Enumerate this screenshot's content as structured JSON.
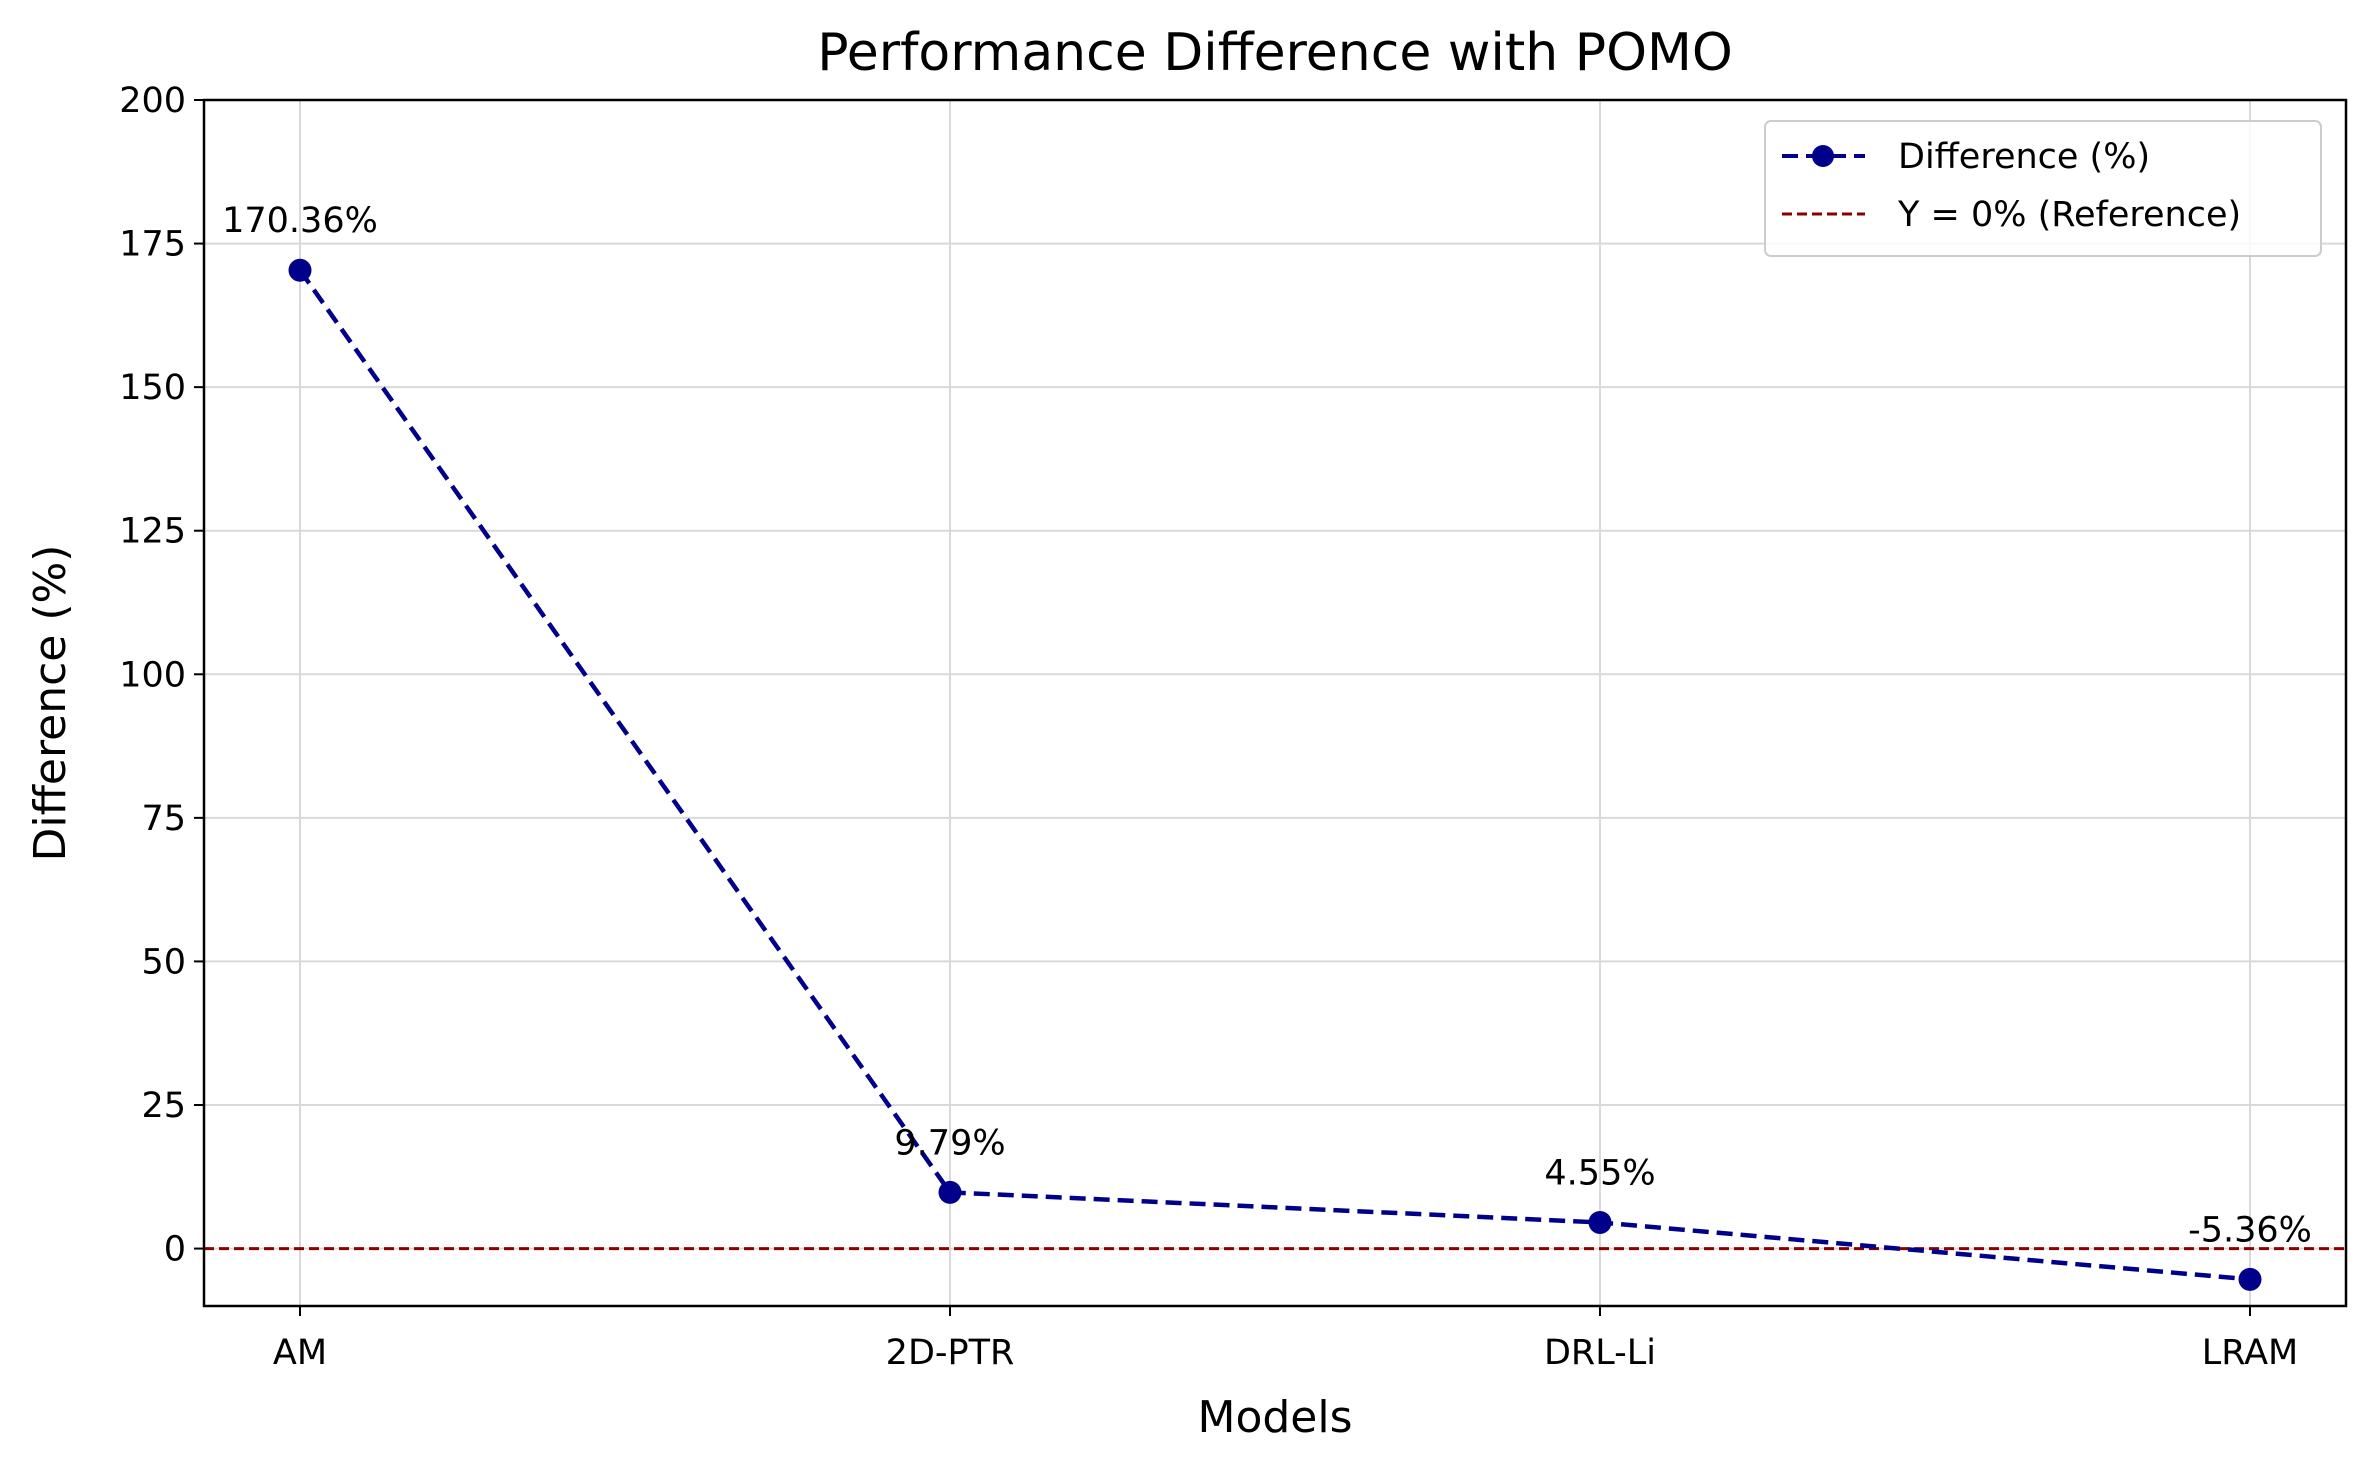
{
  "chart_data": {
    "type": "line",
    "title": "Performance Difference with POMO",
    "xlabel": "Models",
    "ylabel": "Difference (%)",
    "categories": [
      "AM",
      "2D-PTR",
      "DRL-Li",
      "LRAM"
    ],
    "series": [
      {
        "name": "Difference (%)",
        "values": [
          170.36,
          9.79,
          4.55,
          -5.36
        ],
        "labels": [
          "170.36%",
          "9.79%",
          "4.55%",
          "-5.36%"
        ],
        "color": "#00008b",
        "line_style": "dashed",
        "marker": "circle"
      }
    ],
    "reference_line": {
      "name": "Y = 0%  (Reference)",
      "y": 0,
      "color": "#8b0000",
      "line_style": "dashed"
    },
    "ylim": [
      -10,
      200
    ],
    "yticks": [
      0,
      25,
      50,
      75,
      100,
      125,
      150,
      175,
      200
    ],
    "grid": true,
    "legend_position": "top-right"
  }
}
